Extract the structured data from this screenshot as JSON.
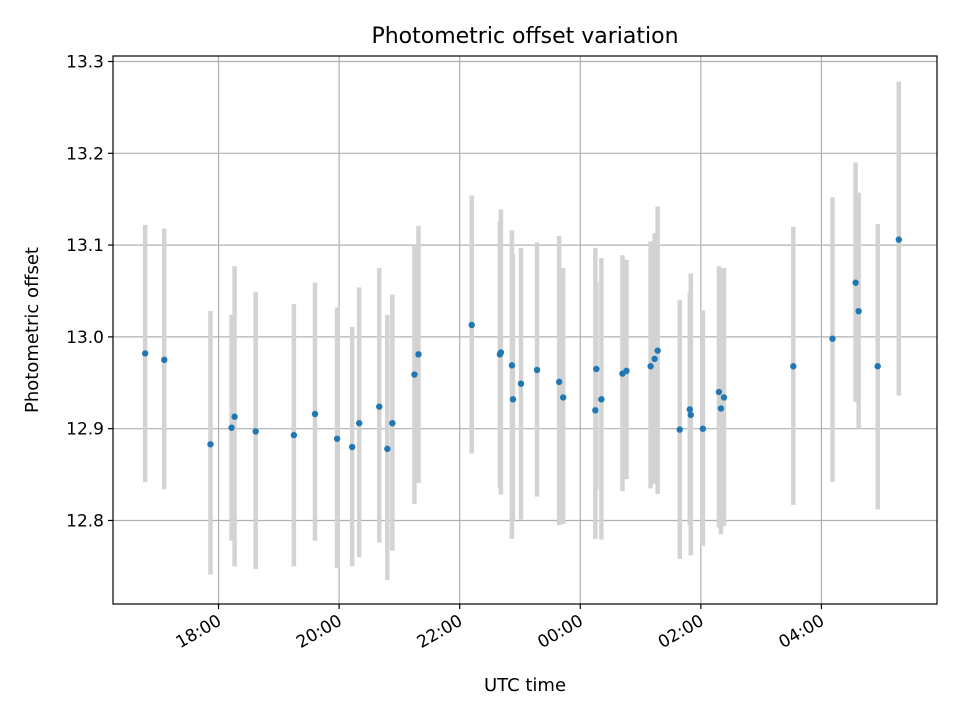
{
  "chart_data": {
    "type": "scatter",
    "title": "Photometric offset variation",
    "xlabel": "UTC time",
    "ylabel": "Photometric offset",
    "grid": true,
    "x_tick_labels": [
      "18:00",
      "20:00",
      "22:00",
      "00:00",
      "02:00",
      "04:00"
    ],
    "x_ticks": [
      "18:00",
      "20:00",
      "22:00",
      "24:00",
      "26:00",
      "28:00"
    ],
    "y_ticks": [
      12.8,
      12.9,
      13.0,
      13.1,
      13.2,
      13.3
    ],
    "y_tick_labels": [
      "12.8",
      "12.9",
      "13.0",
      "13.1",
      "13.2",
      "13.3"
    ],
    "xlim": [
      "16:15",
      "29:55"
    ],
    "ylim": [
      12.709,
      13.306
    ],
    "colors": {
      "points": "#1f77b4",
      "errorbars": "#d3d3d3",
      "grid": "#b0b0b0"
    },
    "series": [
      {
        "x": [
          "16:47",
          "17:06",
          "17:52",
          "18:13",
          "18:16",
          "18:37",
          "19:15",
          "19:36",
          "19:58",
          "20:13",
          "20:20",
          "20:40",
          "20:48",
          "20:53",
          "21:15",
          "21:19",
          "22:12",
          "22:40",
          "22:41",
          "22:52",
          "22:53",
          "23:01",
          "23:17",
          "23:39",
          "23:43",
          "00:15",
          "00:16",
          "00:21",
          "00:42",
          "00:46",
          "01:10",
          "01:14",
          "01:17",
          "01:39",
          "01:49",
          "01:50",
          "02:02",
          "02:18",
          "02:20",
          "02:23",
          "03:32",
          "04:11",
          "04:34",
          "04:37",
          "04:56",
          "05:17"
        ],
        "y": [
          12.982,
          12.975,
          12.883,
          12.901,
          12.913,
          12.897,
          12.893,
          12.916,
          12.889,
          12.88,
          12.906,
          12.924,
          12.878,
          12.906,
          12.959,
          12.981,
          13.013,
          12.981,
          12.983,
          12.969,
          12.932,
          12.949,
          12.964,
          12.951,
          12.934,
          12.92,
          12.965,
          12.932,
          12.96,
          12.963,
          12.968,
          12.976,
          12.985,
          12.899,
          12.921,
          12.915,
          12.9,
          12.94,
          12.922,
          12.934,
          12.968,
          12.998,
          13.059,
          13.028,
          12.968,
          13.106
        ],
        "err_low": [
          12.842,
          12.834,
          12.741,
          12.778,
          12.75,
          12.747,
          12.75,
          12.778,
          12.748,
          12.75,
          12.76,
          12.776,
          12.735,
          12.767,
          12.818,
          12.841,
          12.873,
          12.836,
          12.828,
          12.78,
          12.8,
          12.801,
          12.826,
          12.795,
          12.796,
          12.78,
          12.834,
          12.779,
          12.832,
          12.845,
          12.835,
          12.84,
          12.829,
          12.758,
          12.795,
          12.762,
          12.772,
          12.792,
          12.785,
          12.794,
          12.817,
          12.842,
          12.929,
          12.9,
          12.812,
          12.936
        ],
        "err_high": [
          13.122,
          13.118,
          13.028,
          13.024,
          13.077,
          13.049,
          13.036,
          13.059,
          13.032,
          13.011,
          13.054,
          13.075,
          13.024,
          13.046,
          13.1,
          13.121,
          13.154,
          13.126,
          13.139,
          13.116,
          13.09,
          13.097,
          13.103,
          13.11,
          13.075,
          13.097,
          13.06,
          13.086,
          13.089,
          13.084,
          13.104,
          13.113,
          13.142,
          13.04,
          13.048,
          13.069,
          13.029,
          13.077,
          13.074,
          13.075,
          13.12,
          13.152,
          13.19,
          13.157,
          13.123,
          13.278
        ]
      }
    ]
  }
}
